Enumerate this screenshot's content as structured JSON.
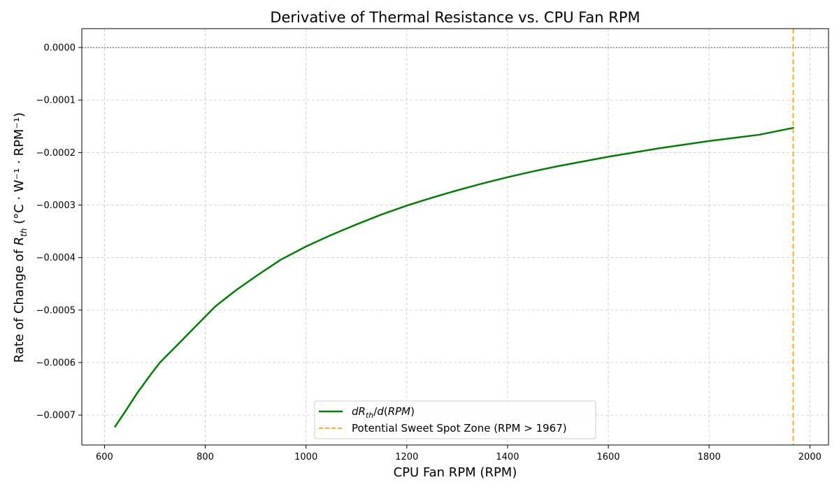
{
  "chart_data": {
    "type": "line",
    "title": "Derivative of Thermal Resistance vs. CPU Fan RPM",
    "xlabel": "CPU Fan RPM (RPM)",
    "ylabel": "Rate of Change of R_th (°C · W⁻¹ · RPM⁻¹)",
    "xlim": [
      555,
      2037
    ],
    "ylim": [
      -0.000757,
      3.6e-05
    ],
    "x_ticks": [
      600,
      800,
      1000,
      1200,
      1400,
      1600,
      1800,
      2000
    ],
    "x_tick_labels": [
      "600",
      "800",
      "1000",
      "1200",
      "1400",
      "1600",
      "1800",
      "2000"
    ],
    "y_ticks": [
      0,
      -0.0001,
      -0.0002,
      -0.0003,
      -0.0004,
      -0.0005,
      -0.0006,
      -0.0007
    ],
    "y_tick_labels": [
      "0.0000",
      "−0.0001",
      "−0.0002",
      "−0.0003",
      "−0.0004",
      "−0.0005",
      "−0.0006",
      "−0.0007"
    ],
    "grid": true,
    "legend_position": "lower-center",
    "zero_line": 0,
    "series": [
      {
        "name": "dR_th/d(RPM)",
        "color": "#008000",
        "style": "solid",
        "x": [
          621,
          640,
          665,
          690,
          710,
          740,
          780,
          820,
          860,
          900,
          950,
          1000,
          1050,
          1100,
          1150,
          1200,
          1250,
          1300,
          1350,
          1400,
          1450,
          1500,
          1550,
          1600,
          1650,
          1700,
          1750,
          1800,
          1850,
          1900,
          1967
        ],
        "y": [
          -0.000722,
          -0.000695,
          -0.000658,
          -0.000625,
          -0.0006,
          -0.000571,
          -0.000532,
          -0.000493,
          -0.000463,
          -0.000436,
          -0.000404,
          -0.000379,
          -0.000357,
          -0.000337,
          -0.000318,
          -0.000301,
          -0.000286,
          -0.000272,
          -0.000259,
          -0.000247,
          -0.000236,
          -0.000226,
          -0.000217,
          -0.000208,
          -0.0002,
          -0.000192,
          -0.000185,
          -0.000178,
          -0.000172,
          -0.000166,
          -0.000153
        ]
      },
      {
        "name": "Potential Sweet Spot Zone (RPM > 1967)",
        "color": "#FFA500",
        "style": "dashed",
        "vline_x": 1967
      }
    ]
  }
}
